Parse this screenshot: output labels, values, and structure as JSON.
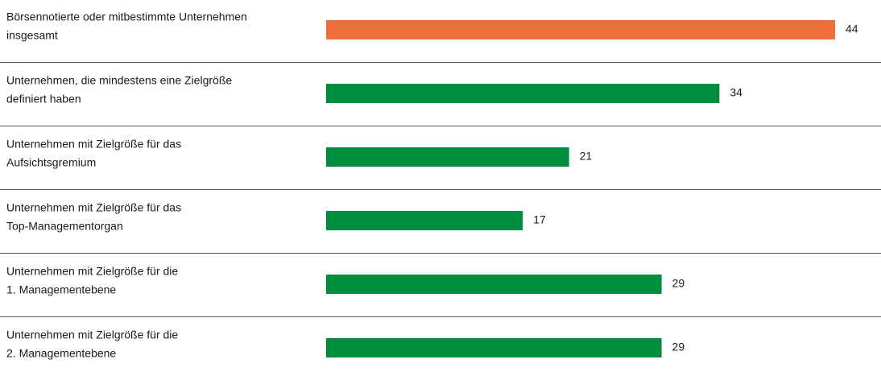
{
  "chart_data": {
    "type": "barh",
    "categories": [
      [
        "Börsennotierte oder mitbestimmte Unternehmen",
        "insgesamt"
      ],
      [
        "Unternehmen, die mindestens eine Zielgröße",
        "definiert haben"
      ],
      [
        "Unternehmen mit Zielgröße für das",
        "Aufsichtsgremium"
      ],
      [
        "Unternehmen mit Zielgröße für das",
        "Top-Managementorgan"
      ],
      [
        "Unternehmen mit Zielgröße für die",
        "1. Managementebene"
      ],
      [
        "Unternehmen mit Zielgröße für die",
        "2. Managementebene"
      ]
    ],
    "values": [
      44,
      34,
      21,
      17,
      29,
      29
    ],
    "colors": [
      "#ee6e3b",
      "#008c3d",
      "#008c3d",
      "#008c3d",
      "#008c3d",
      "#008c3d"
    ]
  }
}
